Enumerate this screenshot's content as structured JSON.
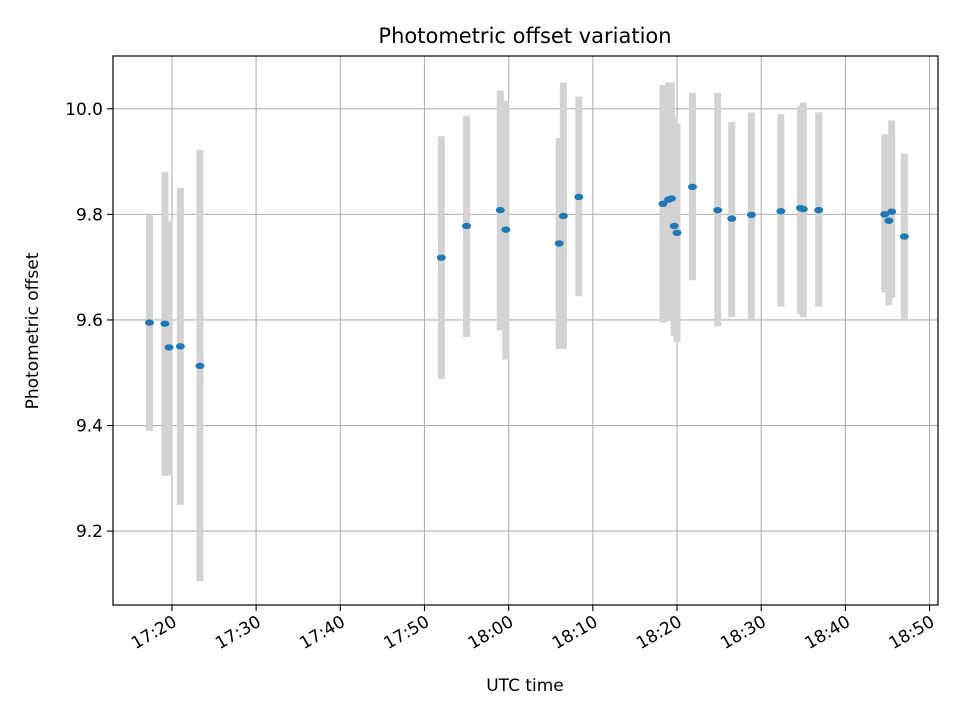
{
  "chart_data": {
    "type": "scatter",
    "title": "Photometric offset variation",
    "xlabel": "UTC time",
    "ylabel": "Photometric offset",
    "xlim": [
      "17:13",
      "18:51"
    ],
    "ylim": [
      9.06,
      10.1
    ],
    "x_ticks": [
      "17:20",
      "17:30",
      "17:40",
      "17:50",
      "18:00",
      "18:10",
      "18:20",
      "18:30",
      "18:40",
      "18:50"
    ],
    "y_ticks": [
      9.2,
      9.4,
      9.6,
      9.8,
      10.0
    ],
    "y_tick_labels": [
      "9.2",
      "9.4",
      "9.6",
      "9.8",
      "10.0"
    ],
    "grid": true,
    "point_color": "#1f77b4",
    "errorbar_color": "#d3d3d3",
    "series": [
      {
        "x": [
          "17:17:20",
          "17:19:10",
          "17:19:40",
          "17:21:00",
          "17:23:20",
          "17:52:00",
          "17:55:00",
          "17:59:00",
          "17:59:40",
          "18:06:00",
          "18:06:30",
          "18:08:20",
          "18:18:20",
          "18:19:00",
          "18:19:20",
          "18:19:40",
          "18:20:00",
          "18:21:50",
          "18:24:50",
          "18:26:30",
          "18:28:50",
          "18:32:20",
          "18:34:40",
          "18:35:00",
          "18:36:50",
          "18:44:40",
          "18:45:10",
          "18:45:30",
          "18:47:00"
        ],
        "y": [
          9.595,
          9.593,
          9.548,
          9.55,
          9.513,
          9.718,
          9.778,
          9.808,
          9.771,
          9.745,
          9.797,
          9.833,
          9.82,
          9.828,
          9.83,
          9.778,
          9.765,
          9.852,
          9.808,
          9.792,
          9.799,
          9.806,
          9.812,
          9.81,
          9.808,
          9.8,
          9.788,
          9.805,
          9.758
        ],
        "err_low": [
          9.39,
          9.305,
          9.305,
          9.25,
          9.105,
          9.488,
          9.568,
          9.58,
          9.525,
          9.545,
          9.545,
          9.645,
          9.595,
          9.6,
          9.6,
          9.57,
          9.558,
          9.675,
          9.588,
          9.605,
          9.602,
          9.625,
          9.61,
          9.605,
          9.625,
          9.652,
          9.628,
          9.642,
          9.6
        ],
        "err_high": [
          9.8,
          9.88,
          9.788,
          9.85,
          9.922,
          9.948,
          9.987,
          10.035,
          10.015,
          9.945,
          10.05,
          10.023,
          10.045,
          10.05,
          10.05,
          9.985,
          9.972,
          10.03,
          10.03,
          9.975,
          9.993,
          9.99,
          10.005,
          10.012,
          9.993,
          9.952,
          9.95,
          9.978,
          9.915
        ]
      }
    ]
  }
}
